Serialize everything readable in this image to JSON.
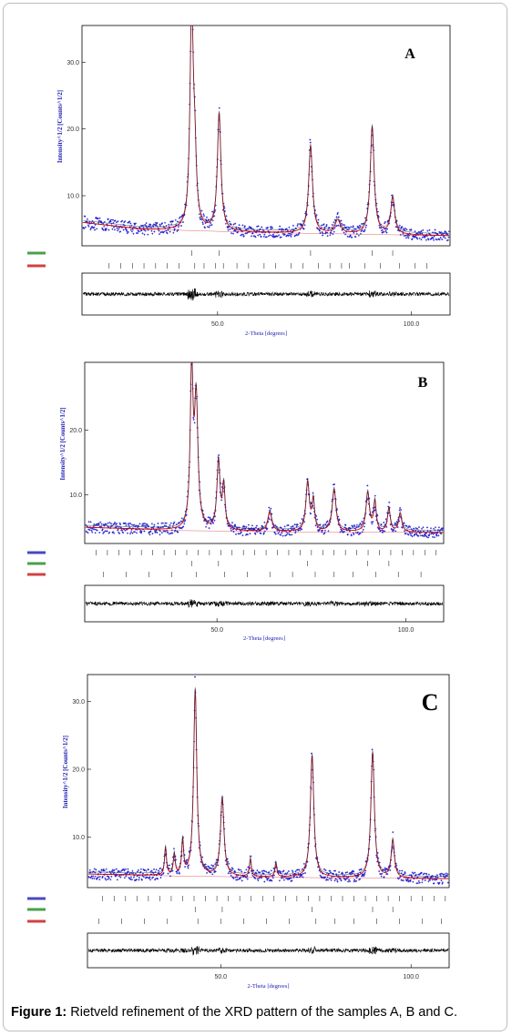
{
  "caption": {
    "label": "Figure 1:",
    "text": " Rietveld refinement of the XRD pattern of the samples A, B and C."
  },
  "colors": {
    "observed": "#1f1fd0",
    "calculated": "#d00000",
    "difference": "#000000",
    "phase_green": "#1a8a1a",
    "phase_red": "#c81010",
    "phase_blue": "#1a1ab0"
  },
  "chart_data": [
    {
      "type": "line",
      "panel": "A",
      "title": "A",
      "xlabel": "2-Theta [degrees]",
      "ylabel": "Intensity^1/2 [Counts^1/2]",
      "xlim": [
        15,
        110
      ],
      "ylim": [
        2.5,
        35.5
      ],
      "xticks": [
        "50.0",
        "100.0"
      ],
      "yticks": [
        "10.0",
        "20.0",
        "30.0"
      ],
      "background": [
        [
          15,
          6.0
        ],
        [
          30,
          5.0
        ],
        [
          60,
          4.5
        ],
        [
          90,
          4.2
        ],
        [
          110,
          4.0
        ]
      ],
      "peaks": [
        {
          "pos": 43.3,
          "height": 33,
          "width": 0.5
        },
        {
          "pos": 44.1,
          "height": 9,
          "width": 0.5
        },
        {
          "pos": 50.4,
          "height": 17.5,
          "width": 0.55
        },
        {
          "pos": 74.0,
          "height": 13,
          "width": 0.6
        },
        {
          "pos": 81.0,
          "height": 2.0,
          "width": 0.8
        },
        {
          "pos": 89.9,
          "height": 16,
          "width": 0.6
        },
        {
          "pos": 95.2,
          "height": 5.5,
          "width": 0.6
        }
      ],
      "series": [
        {
          "name": "",
          "role": "observed"
        },
        {
          "name": "",
          "role": "calculated"
        },
        {
          "name": "",
          "role": "difference"
        }
      ],
      "phases": [
        {
          "label": "",
          "color": "phase_green",
          "ticks": [
            43.3,
            50.4,
            74.0,
            89.9,
            95.2
          ]
        },
        {
          "label": "",
          "color": "phase_red",
          "ticks": [
            22,
            25,
            28,
            31,
            34,
            37,
            40,
            44.1,
            46.5,
            49.5,
            51.5,
            55,
            58,
            62,
            65,
            69,
            72,
            76,
            79,
            82,
            84,
            88,
            92,
            97,
            101,
            104
          ]
        }
      ]
    },
    {
      "type": "line",
      "panel": "B",
      "title": "B",
      "xlabel": "2-Theta [degrees]",
      "ylabel": "Intensity^1/2 [Counts^1/2]",
      "xlim": [
        15,
        110
      ],
      "ylim": [
        2.5,
        30.5
      ],
      "xticks": [
        "50.0",
        "100.0"
      ],
      "yticks": [
        "10.0",
        "20.0"
      ],
      "background": [
        [
          15,
          5.0
        ],
        [
          40,
          4.5
        ],
        [
          70,
          4.3
        ],
        [
          110,
          4.2
        ]
      ],
      "peaks": [
        {
          "pos": 43.3,
          "height": 24,
          "width": 0.45
        },
        {
          "pos": 44.5,
          "height": 19.5,
          "width": 0.55
        },
        {
          "pos": 50.4,
          "height": 10.5,
          "width": 0.5
        },
        {
          "pos": 51.8,
          "height": 6.5,
          "width": 0.4
        },
        {
          "pos": 64.0,
          "height": 3.0,
          "width": 0.6
        },
        {
          "pos": 74.0,
          "height": 7.5,
          "width": 0.55
        },
        {
          "pos": 75.5,
          "height": 4.5,
          "width": 0.4
        },
        {
          "pos": 81.0,
          "height": 6.5,
          "width": 0.6
        },
        {
          "pos": 89.9,
          "height": 6.0,
          "width": 0.55
        },
        {
          "pos": 91.8,
          "height": 4.5,
          "width": 0.4
        },
        {
          "pos": 95.5,
          "height": 3.5,
          "width": 0.45
        },
        {
          "pos": 98.5,
          "height": 2.8,
          "width": 0.5
        }
      ],
      "series": [
        {
          "name": "",
          "role": "observed"
        },
        {
          "name": "",
          "role": "calculated"
        },
        {
          "name": "",
          "role": "difference"
        }
      ],
      "phases": [
        {
          "label": "",
          "color": "phase_blue",
          "ticks": [
            18,
            21,
            24,
            27,
            30,
            33,
            36,
            39,
            42,
            45,
            48,
            51,
            54,
            57,
            60,
            63,
            66,
            69,
            72,
            75,
            78,
            81,
            84,
            87,
            90,
            93,
            96,
            99,
            102,
            105,
            108
          ]
        },
        {
          "label": "",
          "color": "phase_green",
          "ticks": [
            43.3,
            50.4,
            74.0,
            89.9,
            95.5
          ]
        },
        {
          "label": "",
          "color": "phase_red",
          "ticks": [
            20,
            26,
            32,
            38,
            44.5,
            52,
            58,
            64,
            70,
            76,
            81,
            86,
            92,
            98,
            104
          ]
        }
      ]
    },
    {
      "type": "line",
      "panel": "C",
      "title": "C",
      "xlabel": "2-Theta [degrees]",
      "ylabel": "Intensity^1/2 [Counts^1/2]",
      "xlim": [
        15,
        110
      ],
      "ylim": [
        2.5,
        34.0
      ],
      "xticks": [
        "50.0",
        "100.0"
      ],
      "yticks": [
        "10.0",
        "20.0",
        "30.0"
      ],
      "background": [
        [
          15,
          4.5
        ],
        [
          40,
          4.2
        ],
        [
          70,
          4.0
        ],
        [
          110,
          3.8
        ]
      ],
      "peaks": [
        {
          "pos": 35.5,
          "height": 4.0,
          "width": 0.3
        },
        {
          "pos": 37.8,
          "height": 3.0,
          "width": 0.3
        },
        {
          "pos": 40.0,
          "height": 5.0,
          "width": 0.3
        },
        {
          "pos": 43.3,
          "height": 27.5,
          "width": 0.5
        },
        {
          "pos": 50.4,
          "height": 11.5,
          "width": 0.55
        },
        {
          "pos": 57.8,
          "height": 2.5,
          "width": 0.3
        },
        {
          "pos": 64.5,
          "height": 2.0,
          "width": 0.3
        },
        {
          "pos": 74.0,
          "height": 18.0,
          "width": 0.55
        },
        {
          "pos": 89.9,
          "height": 18.5,
          "width": 0.55
        },
        {
          "pos": 95.2,
          "height": 5.5,
          "width": 0.5
        }
      ],
      "series": [
        {
          "name": "",
          "role": "observed"
        },
        {
          "name": "",
          "role": "calculated"
        },
        {
          "name": "",
          "role": "difference"
        }
      ],
      "phases": [
        {
          "label": "",
          "color": "phase_blue",
          "ticks": [
            19,
            22,
            25,
            28,
            31,
            34,
            37,
            40,
            43,
            46,
            49,
            52,
            55,
            58,
            61,
            64,
            67,
            70,
            73,
            76,
            79,
            82,
            85,
            88,
            91,
            94,
            97,
            100,
            103,
            106,
            109
          ]
        },
        {
          "label": "",
          "color": "phase_green",
          "ticks": [
            43.3,
            50.4,
            74.0,
            89.9,
            95.2
          ]
        },
        {
          "label": "",
          "color": "phase_red",
          "ticks": [
            18,
            24,
            30,
            36,
            44,
            50,
            56,
            62,
            68,
            75,
            80,
            85,
            91,
            97,
            103,
            108
          ]
        }
      ]
    }
  ]
}
